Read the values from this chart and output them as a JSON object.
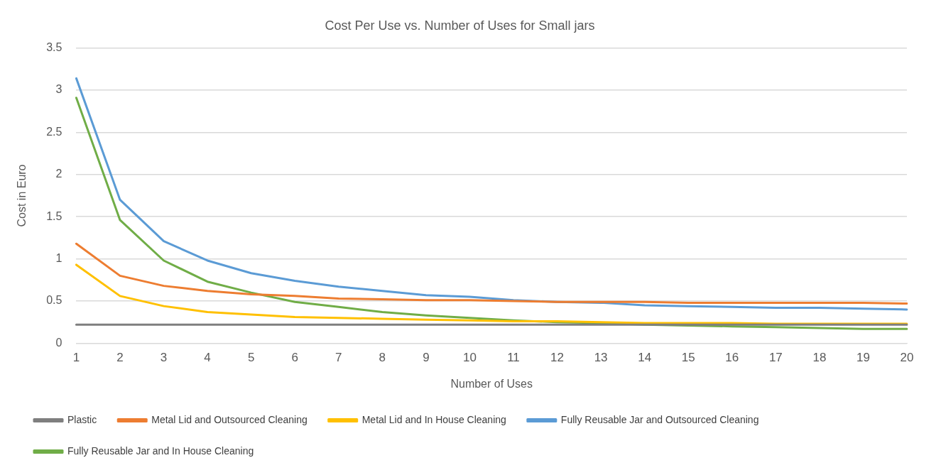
{
  "chart_data": {
    "type": "line",
    "title": "Cost Per Use vs. Number of Uses for Small jars",
    "xlabel": "Number of Uses",
    "ylabel": "Cost in Euro",
    "categories": [
      "1",
      "2",
      "3",
      "4",
      "5",
      "6",
      "7",
      "8",
      "9",
      "10",
      "11",
      "12",
      "13",
      "14",
      "15",
      "16",
      "17",
      "18",
      "19",
      "20"
    ],
    "series": [
      {
        "name": "Plastic",
        "color": "#7f7f7f",
        "values": [
          0.22,
          0.22,
          0.22,
          0.22,
          0.22,
          0.22,
          0.22,
          0.22,
          0.22,
          0.22,
          0.22,
          0.22,
          0.22,
          0.22,
          0.22,
          0.22,
          0.22,
          0.22,
          0.22,
          0.22
        ]
      },
      {
        "name": "Metal Lid and Outsourced Cleaning",
        "color": "#ed7d31",
        "values": [
          1.18,
          0.8,
          0.68,
          0.62,
          0.58,
          0.56,
          0.53,
          0.52,
          0.51,
          0.51,
          0.5,
          0.49,
          0.49,
          0.49,
          0.48,
          0.48,
          0.48,
          0.48,
          0.48,
          0.47
        ]
      },
      {
        "name": "Metal Lid and In House Cleaning",
        "color": "#ffc000",
        "values": [
          0.93,
          0.56,
          0.44,
          0.37,
          0.34,
          0.31,
          0.3,
          0.29,
          0.28,
          0.27,
          0.26,
          0.26,
          0.25,
          0.24,
          0.24,
          0.24,
          0.23,
          0.23,
          0.23,
          0.23
        ]
      },
      {
        "name": "Fully Reusable Jar and Outsourced Cleaning",
        "color": "#5b9bd5",
        "values": [
          3.14,
          1.7,
          1.21,
          0.98,
          0.83,
          0.74,
          0.67,
          0.62,
          0.57,
          0.55,
          0.51,
          0.49,
          0.48,
          0.45,
          0.44,
          0.43,
          0.42,
          0.42,
          0.41,
          0.4
        ]
      },
      {
        "name": "Fully Reusable Jar and In House Cleaning",
        "color": "#70ad47",
        "values": [
          2.91,
          1.46,
          0.98,
          0.73,
          0.6,
          0.49,
          0.43,
          0.37,
          0.33,
          0.3,
          0.27,
          0.25,
          0.24,
          0.22,
          0.21,
          0.2,
          0.19,
          0.18,
          0.17,
          0.17
        ]
      }
    ],
    "ylim": [
      0,
      3.5
    ],
    "yticks": [
      0,
      0.5,
      1,
      1.5,
      2,
      2.5,
      3,
      3.5
    ],
    "grid": "y",
    "legend": "bottom",
    "marker": "none",
    "line_style": "solid"
  }
}
